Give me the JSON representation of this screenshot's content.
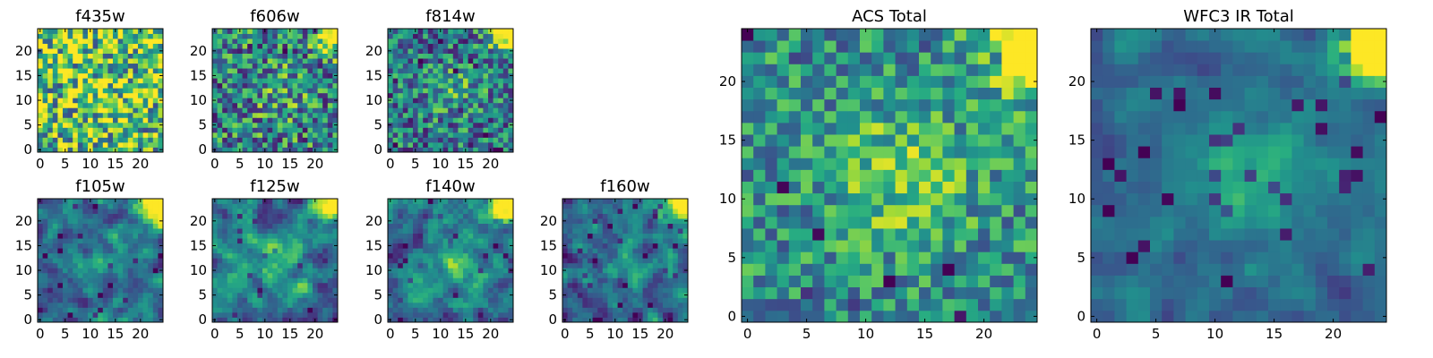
{
  "figure": {
    "description": "Grid of 7 filter image cutouts plus 2 summed images (viridis colormap)"
  },
  "chart_data": [
    {
      "type": "heatmap",
      "title": "f435w",
      "xlim": [
        0,
        24
      ],
      "ylim": [
        0,
        24
      ],
      "xticks": [
        0,
        5,
        10,
        15,
        20
      ],
      "yticks": [
        0,
        5,
        10,
        15,
        20
      ],
      "texture": 0.95,
      "noise_seed": 11,
      "smooth": 0,
      "corner_strength": 0.15,
      "center_strength": 0.1,
      "base": 0.7,
      "dark_edge_strength": 0.0
    },
    {
      "type": "heatmap",
      "title": "f606w",
      "xlim": [
        0,
        24
      ],
      "ylim": [
        0,
        24
      ],
      "xticks": [
        0,
        5,
        10,
        15,
        20
      ],
      "yticks": [
        0,
        5,
        10,
        15,
        20
      ],
      "texture": 0.8,
      "noise_seed": 23,
      "smooth": 0,
      "corner_strength": 0.75,
      "center_strength": 0.15,
      "base": 0.45,
      "dark_edge_strength": 0.1
    },
    {
      "type": "heatmap",
      "title": "f814w",
      "xlim": [
        0,
        24
      ],
      "ylim": [
        0,
        24
      ],
      "xticks": [
        0,
        5,
        10,
        15,
        20
      ],
      "yticks": [
        0,
        5,
        10,
        15,
        20
      ],
      "texture": 0.7,
      "noise_seed": 37,
      "smooth": 0,
      "corner_strength": 0.9,
      "center_strength": 0.2,
      "base": 0.4,
      "dark_edge_strength": 0.15
    },
    {
      "type": "heatmap",
      "title": "f105w",
      "xlim": [
        0,
        24
      ],
      "ylim": [
        0,
        24
      ],
      "xticks": [
        0,
        5,
        10,
        15,
        20
      ],
      "yticks": [
        0,
        5,
        10,
        15,
        20
      ],
      "texture": 0.45,
      "noise_seed": 41,
      "smooth": 1,
      "corner_strength": 1.0,
      "center_strength": 0.2,
      "base": 0.35,
      "dark_edge_strength": 0.2
    },
    {
      "type": "heatmap",
      "title": "f125w",
      "xlim": [
        0,
        24
      ],
      "ylim": [
        0,
        24
      ],
      "xticks": [
        0,
        5,
        10,
        15,
        20
      ],
      "yticks": [
        0,
        5,
        10,
        15,
        20
      ],
      "texture": 0.45,
      "noise_seed": 53,
      "smooth": 1,
      "corner_strength": 1.0,
      "center_strength": 0.25,
      "base": 0.4,
      "dark_edge_strength": 0.2
    },
    {
      "type": "heatmap",
      "title": "f140w",
      "xlim": [
        0,
        24
      ],
      "ylim": [
        0,
        24
      ],
      "xticks": [
        0,
        5,
        10,
        15,
        20
      ],
      "yticks": [
        0,
        5,
        10,
        15,
        20
      ],
      "texture": 0.45,
      "noise_seed": 67,
      "smooth": 1,
      "corner_strength": 1.0,
      "center_strength": 0.25,
      "base": 0.4,
      "dark_edge_strength": 0.25
    },
    {
      "type": "heatmap",
      "title": "f160w",
      "xlim": [
        0,
        24
      ],
      "ylim": [
        0,
        24
      ],
      "xticks": [
        0,
        5,
        10,
        15,
        20
      ],
      "yticks": [
        0,
        5,
        10,
        15,
        20
      ],
      "texture": 0.45,
      "noise_seed": 79,
      "smooth": 1,
      "corner_strength": 1.0,
      "center_strength": 0.2,
      "base": 0.35,
      "dark_edge_strength": 0.3
    },
    {
      "type": "heatmap",
      "title": "ACS Total",
      "xlim": [
        0,
        24
      ],
      "ylim": [
        0,
        24
      ],
      "xticks": [
        0,
        5,
        10,
        15,
        20
      ],
      "yticks": [
        0,
        5,
        10,
        15,
        20
      ],
      "texture": 0.55,
      "noise_seed": 97,
      "smooth": 0,
      "corner_strength": 0.95,
      "center_strength": 0.3,
      "base": 0.5,
      "dark_edge_strength": 0.2
    },
    {
      "type": "heatmap",
      "title": "WFC3 IR Total",
      "xlim": [
        0,
        24
      ],
      "ylim": [
        0,
        24
      ],
      "xticks": [
        0,
        5,
        10,
        15,
        20
      ],
      "yticks": [
        0,
        5,
        10,
        15,
        20
      ],
      "texture": 0.25,
      "noise_seed": 113,
      "smooth": 1,
      "corner_strength": 1.0,
      "center_strength": 0.25,
      "base": 0.35,
      "dark_edge_strength": 0.45
    }
  ]
}
